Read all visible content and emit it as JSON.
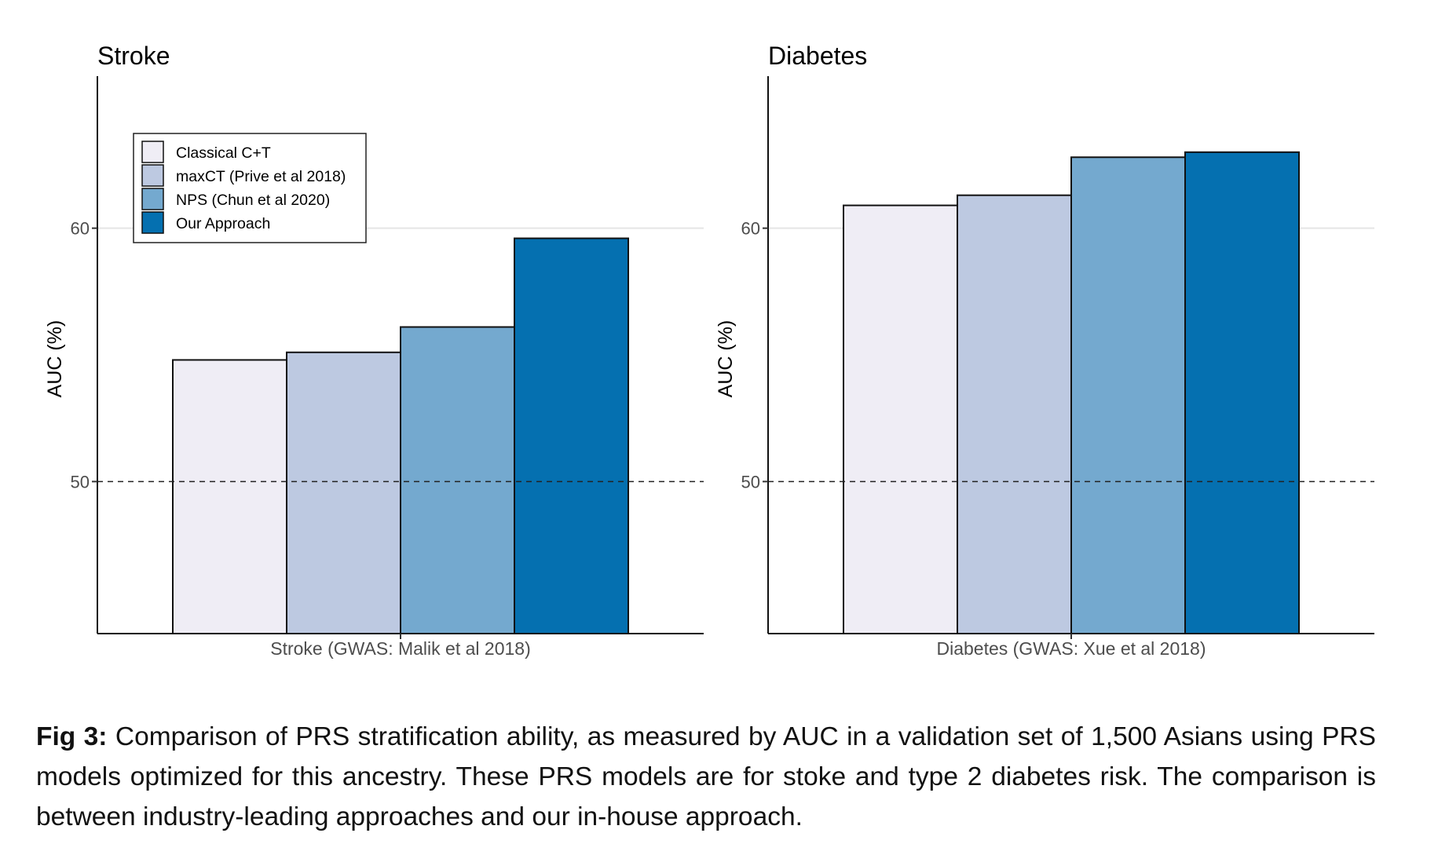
{
  "chart_data": [
    {
      "type": "bar",
      "title": "Stroke",
      "ylabel": "AUC (%)",
      "xlabel": "Stroke (GWAS: Malik et al 2018)",
      "ylim": [
        44,
        66
      ],
      "yticks": [
        50,
        60
      ],
      "reference_line": 50,
      "grid": "horizontal major only",
      "legend_position": "top-left",
      "series": [
        {
          "name": "Classical C+T",
          "value": 54.8,
          "color": "#efedf5"
        },
        {
          "name": "maxCT (Prive et al 2018)",
          "value": 55.1,
          "color": "#bdc9e1"
        },
        {
          "name": "NPS (Chun et al 2020)",
          "value": 56.1,
          "color": "#74a9cf"
        },
        {
          "name": "Our Approach",
          "value": 59.6,
          "color": "#0570b0"
        }
      ]
    },
    {
      "type": "bar",
      "title": "Diabetes",
      "ylabel": "AUC (%)",
      "xlabel": "Diabetes (GWAS: Xue et al 2018)",
      "ylim": [
        44,
        66
      ],
      "yticks": [
        50,
        60
      ],
      "reference_line": 50,
      "grid": "horizontal major only",
      "series": [
        {
          "name": "Classical C+T",
          "value": 60.9,
          "color": "#efedf5"
        },
        {
          "name": "maxCT (Prive et al 2018)",
          "value": 61.3,
          "color": "#bdc9e1"
        },
        {
          "name": "NPS (Chun et al 2020)",
          "value": 62.8,
          "color": "#74a9cf"
        },
        {
          "name": "Our Approach",
          "value": 63.0,
          "color": "#0570b0"
        }
      ]
    }
  ],
  "caption": {
    "label": "Fig 3:",
    "text": " Comparison of PRS stratification ability, as measured by AUC in a validation set of 1,500 Asians using PRS models optimized for this ancestry. These PRS models are for stoke and type 2 diabetes risk. The comparison is between industry-leading approaches and our in-house approach."
  }
}
